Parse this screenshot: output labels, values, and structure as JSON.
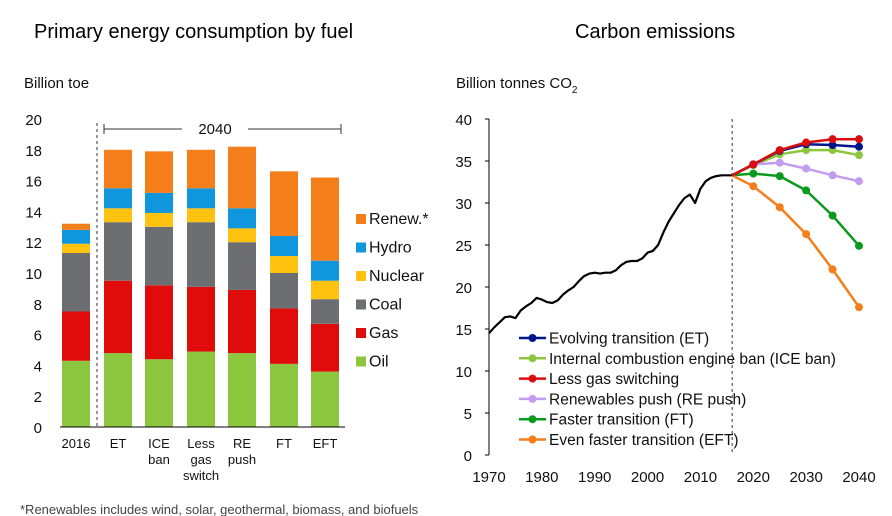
{
  "chart_data": [
    {
      "type": "bar",
      "stacked": true,
      "title": "Primary energy consumption by fuel",
      "ylabel": "Billion toe",
      "ylim": [
        0,
        20
      ],
      "yticks": [
        0,
        2,
        4,
        6,
        8,
        10,
        12,
        14,
        16,
        18,
        20
      ],
      "bracket_label": "2040",
      "categories": [
        [
          "2016"
        ],
        [
          "ET"
        ],
        [
          "ICE",
          "ban"
        ],
        [
          "Less",
          "gas",
          "switch"
        ],
        [
          "RE",
          "push"
        ],
        [
          "FT"
        ],
        [
          "EFT"
        ]
      ],
      "series": [
        {
          "name": "Oil",
          "color": "#8cc63f",
          "values": [
            4.3,
            4.8,
            4.4,
            4.9,
            4.8,
            4.1,
            3.6
          ]
        },
        {
          "name": "Gas",
          "color": "#e00b0b",
          "values": [
            3.2,
            4.7,
            4.8,
            4.2,
            4.1,
            3.6,
            3.1
          ]
        },
        {
          "name": "Coal",
          "color": "#6d6e71",
          "values": [
            3.8,
            3.8,
            3.8,
            4.2,
            3.1,
            2.3,
            1.6
          ]
        },
        {
          "name": "Nuclear",
          "color": "#ffc20e",
          "values": [
            0.6,
            0.9,
            0.9,
            0.9,
            0.9,
            1.1,
            1.2
          ]
        },
        {
          "name": "Hydro",
          "color": "#0f96dc",
          "values": [
            0.9,
            1.3,
            1.3,
            1.3,
            1.3,
            1.3,
            1.3
          ]
        },
        {
          "name": "Renew.*",
          "color": "#f47f1a",
          "values": [
            0.4,
            2.5,
            2.7,
            2.5,
            4.0,
            4.2,
            5.4
          ]
        }
      ],
      "footnote": "*Renewables includes wind, solar, geothermal, biomass, and biofuels"
    },
    {
      "type": "line",
      "title": "Carbon emissions",
      "ylabel_main": "Billion tonnes CO",
      "ylabel_sub": "2",
      "xlim": [
        1970,
        2040
      ],
      "ylim": [
        0,
        40
      ],
      "xticks": [
        1970,
        1980,
        1990,
        2000,
        2010,
        2020,
        2030,
        2040
      ],
      "yticks": [
        0,
        5,
        10,
        15,
        20,
        25,
        30,
        35,
        40
      ],
      "divider_x": 2016,
      "history": {
        "color": "#000000",
        "x": [
          1970,
          1971,
          1972,
          1973,
          1974,
          1975,
          1976,
          1977,
          1978,
          1979,
          1980,
          1981,
          1982,
          1983,
          1984,
          1985,
          1986,
          1987,
          1988,
          1989,
          1990,
          1991,
          1992,
          1993,
          1994,
          1995,
          1996,
          1997,
          1998,
          1999,
          2000,
          2001,
          2002,
          2003,
          2004,
          2005,
          2006,
          2007,
          2008,
          2009,
          2010,
          2011,
          2012,
          2013,
          2014,
          2015,
          2016
        ],
        "y": [
          14.5,
          15.2,
          15.8,
          16.4,
          16.5,
          16.3,
          17.2,
          17.7,
          18.1,
          18.7,
          18.5,
          18.2,
          18.1,
          18.4,
          19.1,
          19.6,
          20.0,
          20.7,
          21.3,
          21.6,
          21.7,
          21.6,
          21.7,
          21.7,
          22.0,
          22.6,
          23.0,
          23.1,
          23.1,
          23.4,
          24.1,
          24.3,
          25.0,
          26.5,
          27.8,
          28.8,
          29.8,
          30.6,
          31.0,
          30.0,
          31.7,
          32.6,
          33.0,
          33.2,
          33.3,
          33.3,
          33.3
        ]
      },
      "series": [
        {
          "name": "Evolving transition (ET)",
          "color": "#00178c",
          "x": [
            2016,
            2020,
            2025,
            2030,
            2035,
            2040
          ],
          "y": [
            33.3,
            34.6,
            36.2,
            37.0,
            36.9,
            36.7
          ]
        },
        {
          "name": "Internal combustion engine ban (ICE ban)",
          "color": "#8cc63f",
          "x": [
            2016,
            2020,
            2025,
            2030,
            2035,
            2040
          ],
          "y": [
            33.3,
            34.5,
            35.8,
            36.3,
            36.3,
            35.7
          ]
        },
        {
          "name": "Less gas switching",
          "color": "#d90d0d",
          "x": [
            2016,
            2020,
            2025,
            2030,
            2035,
            2040
          ],
          "y": [
            33.3,
            34.6,
            36.3,
            37.2,
            37.6,
            37.6
          ]
        },
        {
          "name": "Renewables push (RE push)",
          "color": "#c39bf0",
          "x": [
            2016,
            2020,
            2025,
            2030,
            2035,
            2040
          ],
          "y": [
            33.3,
            34.6,
            34.8,
            34.1,
            33.3,
            32.6
          ]
        },
        {
          "name": "Faster transition (FT)",
          "color": "#0a9a1e",
          "x": [
            2016,
            2020,
            2025,
            2030,
            2035,
            2040
          ],
          "y": [
            33.3,
            33.5,
            33.2,
            31.5,
            28.5,
            24.9
          ]
        },
        {
          "name": "Even faster transition (EFT)",
          "color": "#f47f1a",
          "x": [
            2016,
            2020,
            2025,
            2030,
            2035,
            2040
          ],
          "y": [
            33.3,
            32.0,
            29.5,
            26.3,
            22.1,
            17.6
          ]
        }
      ]
    }
  ]
}
